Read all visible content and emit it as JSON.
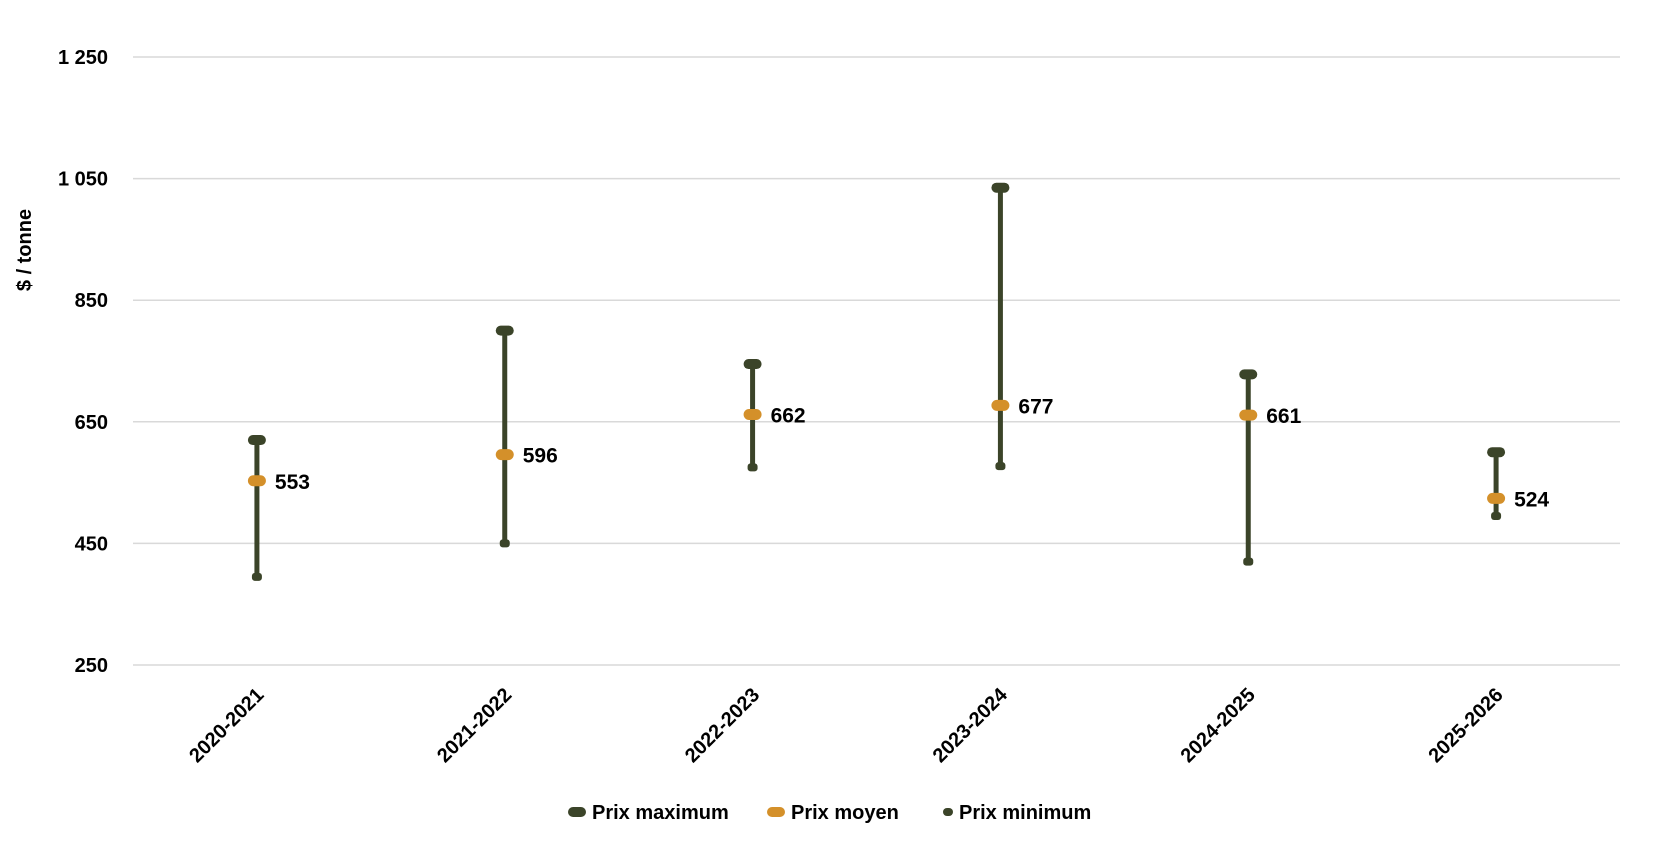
{
  "chart_data": {
    "type": "range",
    "categories": [
      "2020-2021",
      "2021-2022",
      "2022-2023",
      "2023-2024",
      "2024-2025",
      "2025-2026"
    ],
    "series": [
      {
        "name": "Prix maximum",
        "values": [
          620,
          800,
          745,
          1035,
          728,
          600
        ]
      },
      {
        "name": "Prix moyen",
        "values": [
          553,
          596,
          662,
          677,
          661,
          524
        ]
      },
      {
        "name": "Prix minimum",
        "values": [
          395,
          450,
          575,
          577,
          420,
          495
        ]
      }
    ],
    "data_labels": [
      "553",
      "596",
      "662",
      "677",
      "661",
      "524"
    ],
    "ylabel": "$ / tonne",
    "ylim": [
      250,
      1250
    ],
    "yticks": [
      250,
      450,
      650,
      850,
      1050,
      1250
    ],
    "ytick_labels": [
      "250",
      "450",
      "650",
      "850",
      "1 050",
      "1 250"
    ],
    "grid": true,
    "legend_position": "bottom",
    "colors": {
      "range": "#3b4429",
      "mean": "#d4902a",
      "grid": "#d9d9d9"
    }
  }
}
